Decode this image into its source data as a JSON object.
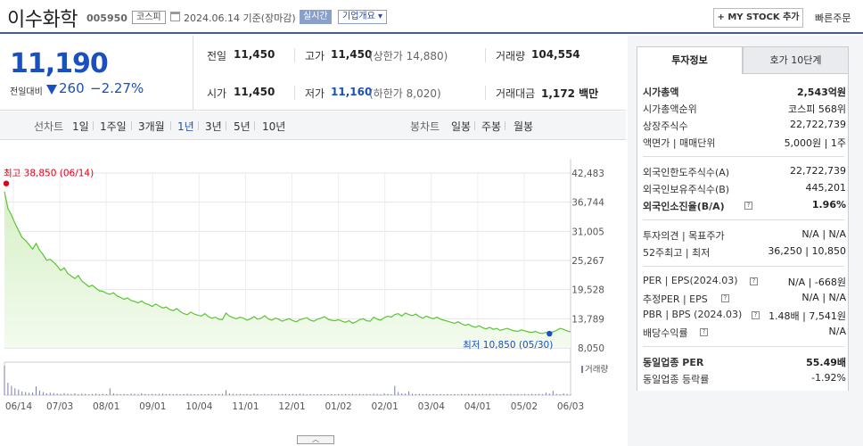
{
  "header": {
    "stock_name": "이수화학",
    "stock_code": "005950",
    "market": "코스피",
    "date_text": "2024.06.14 기준(장마감)",
    "realtime": "실시간",
    "company_overview": "기업개요 ▾",
    "mystock_add": "+ MY STOCK 추가",
    "quick_order": "빠른주문"
  },
  "summary": {
    "price": "11,190",
    "change_label": "전일대비",
    "change": "260",
    "change_rate": "−2.27%",
    "prev_close_label": "전일",
    "prev_close": "11,450",
    "open_label": "시가",
    "open": "11,450",
    "high_label": "고가",
    "high": "11,450",
    "upper_limit": "(상한가 14,880)",
    "low_label": "저가",
    "low": "11,160",
    "lower_limit": "(하한가 8,020)",
    "volume_label": "거래량",
    "volume": "104,554",
    "amount_label": "거래대금",
    "amount": "1,172 백만"
  },
  "period_tabs": {
    "line_label": "선차트",
    "line": [
      "1일",
      "1주일",
      "3개월",
      "1년",
      "3년",
      "5년",
      "10년"
    ],
    "active": "1년",
    "candle_label": "봉차트",
    "candle": [
      "일봉",
      "주봉",
      "월봉"
    ]
  },
  "chart_data": {
    "type": "area",
    "y_ticks": [
      "42,483",
      "36,744",
      "31,005",
      "25,267",
      "19,528",
      "13,789",
      "8,050"
    ],
    "ylim": [
      8050,
      42483
    ],
    "x_labels": [
      "06/14",
      "07/03",
      "08/01",
      "09/01",
      "10/04",
      "11/01",
      "12/01",
      "01/02",
      "02/01",
      "03/04",
      "04/01",
      "05/02",
      "06/03"
    ],
    "max_annotation": "최고 38,850 (06/14)",
    "min_annotation": "최저 10,850 (05/30)",
    "volume_label": "거래량",
    "values": [
      38850,
      35500,
      34200,
      32600,
      31200,
      29800,
      29200,
      28400,
      27500,
      28600,
      27300,
      26400,
      25300,
      25500,
      24900,
      24200,
      23300,
      23800,
      22700,
      22200,
      21700,
      22300,
      21200,
      20700,
      20100,
      20400,
      19800,
      19300,
      19200,
      18800,
      18600,
      18900,
      18300,
      18000,
      17600,
      17900,
      17400,
      17200,
      16900,
      17300,
      16800,
      16600,
      16200,
      16700,
      16300,
      15900,
      16100,
      15600,
      15400,
      15800,
      15200,
      14800,
      14600,
      15100,
      14700,
      14500,
      14300,
      14800,
      14200,
      13900,
      14100,
      13700,
      13600,
      14900,
      14300,
      14000,
      13800,
      14100,
      13900,
      13500,
      13800,
      14200,
      13700,
      13900,
      14400,
      13800,
      13500,
      13900,
      13700,
      13300,
      13600,
      13800,
      13400,
      13200,
      13600,
      13800,
      14000,
      13500,
      13300,
      13700,
      13900,
      14200,
      13700,
      13500,
      13400,
      13600,
      13300,
      13100,
      13400,
      12900,
      13200,
      13600,
      13800,
      13400,
      13300,
      14100,
      13700,
      13500,
      14000,
      14300,
      14100,
      14600,
      14800,
      14300,
      14900,
      14600,
      14400,
      14700,
      14200,
      13900,
      14300,
      14000,
      13800,
      14100,
      13700,
      13500,
      13300,
      13100,
      12900,
      13200,
      12800,
      12500,
      12700,
      12300,
      12100,
      12400,
      12000,
      11800,
      12100,
      11700,
      11900,
      11500,
      11700,
      11900,
      11600,
      11400,
      11300,
      11600,
      11400,
      11200,
      11100,
      11300,
      11000,
      10900,
      11100,
      10850,
      11200,
      11500,
      11900,
      11700,
      11400,
      11190
    ],
    "volumes": [
      95,
      40,
      30,
      22,
      18,
      12,
      10,
      8,
      9,
      28,
      15,
      10,
      6,
      8,
      7,
      5,
      4,
      7,
      5,
      4,
      6,
      3,
      5,
      4,
      3,
      4,
      5,
      3,
      4,
      3,
      22,
      6,
      4,
      3,
      4,
      3,
      5,
      4,
      3,
      6,
      4,
      3,
      4,
      3,
      4,
      5,
      3,
      4,
      3,
      4,
      3,
      4,
      5,
      3,
      4,
      3,
      4,
      3,
      4,
      3,
      4,
      3,
      4,
      16,
      6,
      4,
      3,
      4,
      3,
      4,
      3,
      5,
      4,
      3,
      4,
      3,
      4,
      3,
      4,
      3,
      4,
      3,
      4,
      3,
      5,
      4,
      3,
      4,
      3,
      4,
      3,
      4,
      3,
      4,
      3,
      4,
      3,
      4,
      3,
      4,
      3,
      4,
      3,
      4,
      3,
      5,
      4,
      3,
      6,
      4,
      3,
      30,
      10,
      6,
      5,
      12,
      4,
      3,
      4,
      3,
      4,
      3,
      4,
      3,
      4,
      3,
      4,
      3,
      4,
      3,
      4,
      3,
      4,
      3,
      4,
      3,
      4,
      3,
      4,
      3,
      4,
      3,
      4,
      3,
      4,
      3,
      4,
      3,
      4,
      3,
      4,
      3,
      4,
      3,
      8,
      5,
      14,
      4,
      3,
      6,
      4,
      3
    ],
    "colors": {
      "line": "#5cc434",
      "fill_top": "#d6f0c6",
      "fill_bottom": "#f3fbee",
      "max": "#e2001a",
      "min": "#1a4fc0"
    }
  },
  "scroll": "︿",
  "right_panel": {
    "tab_invest": "투자정보",
    "tab_order": "호가 10단계",
    "rows": [
      {
        "label": "시가총액",
        "value": "2,543억원",
        "bold": true
      },
      {
        "label": "시가총액순위",
        "value": "코스피 568위"
      },
      {
        "label": "상장주식수",
        "value": "22,722,739"
      },
      {
        "label": "액면가 | 매매단위",
        "value": "5,000원 | 1주"
      },
      {
        "label": "외국인한도주식수(A)",
        "value": "22,722,739"
      },
      {
        "label": "외국인보유주식수(B)",
        "value": "445,201"
      },
      {
        "label": "외국인소진율(B/A)",
        "value": "1.96%",
        "bold": true
      },
      {
        "label": "투자의견 | 목표주가",
        "value": "N/A | N/A"
      },
      {
        "label": "52주최고 | 최저",
        "value": "36,250 | 10,850"
      },
      {
        "label": "PER | EPS(2024.03)",
        "value": "N/A | -668원"
      },
      {
        "label": "추정PER | EPS",
        "value": "N/A | N/A"
      },
      {
        "label": "PBR | BPS (2024.03)",
        "value": "1.48배 | 7,541원"
      },
      {
        "label": "배당수익률",
        "value": "N/A"
      },
      {
        "label": "동일업종 PER",
        "value": "55.49배",
        "bold": true
      },
      {
        "label": "동일업종 등락률",
        "value": "-1.92%",
        "blue": true
      }
    ]
  }
}
